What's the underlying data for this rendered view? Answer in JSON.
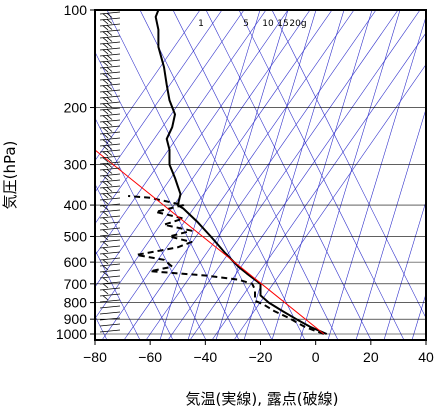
{
  "chart_data": {
    "type": "line",
    "title": "",
    "xlabel": "気温(実線), 露点(破線)",
    "ylabel": "気圧(hPa)",
    "y_scale": "log",
    "y_inverted": true,
    "xlim": [
      -80,
      40
    ],
    "ylim": [
      1050,
      100
    ],
    "x_ticks": [
      -80,
      -60,
      -40,
      -20,
      0,
      20,
      40
    ],
    "x_tick_labels": [
      "−80",
      "−60",
      "−40",
      "−20",
      "0",
      "20",
      "40"
    ],
    "y_ticks": [
      100,
      200,
      300,
      400,
      500,
      600,
      700,
      800,
      900,
      1000
    ],
    "y_tick_labels": [
      "100",
      "200",
      "300",
      "400",
      "500",
      "600",
      "700",
      "800",
      "900",
      "1000"
    ],
    "mixing_ratio_labels": [
      "1",
      "5",
      "10",
      "15",
      "20g"
    ],
    "grid": true,
    "colors": {
      "temperature": "#000000",
      "dewpoint": "#000000",
      "reference_line": "#ff0000",
      "background_lines": "#3333cc",
      "grid": "#000000"
    },
    "series": [
      {
        "style": "solid",
        "points": [
          [
            4,
            1000
          ],
          [
            -2,
            950
          ],
          [
            -7,
            900
          ],
          [
            -12,
            850
          ],
          [
            -17,
            800
          ],
          [
            -20,
            760
          ],
          [
            -20,
            730
          ],
          [
            -20,
            700
          ],
          [
            -22,
            680
          ],
          [
            -25,
            650
          ],
          [
            -28,
            620
          ],
          [
            -33,
            560
          ],
          [
            -38,
            500
          ],
          [
            -43,
            450
          ],
          [
            -48,
            410
          ],
          [
            -50,
            400
          ],
          [
            -49,
            370
          ],
          [
            -50,
            350
          ],
          [
            -51,
            330
          ],
          [
            -53,
            300
          ],
          [
            -53,
            270
          ],
          [
            -54,
            250
          ],
          [
            -52,
            230
          ],
          [
            -51,
            210
          ],
          [
            -53,
            190
          ],
          [
            -54,
            170
          ],
          [
            -55,
            150
          ],
          [
            -57,
            130
          ],
          [
            -57,
            115
          ],
          [
            -58,
            105
          ],
          [
            -57,
            100
          ]
        ]
      },
      {
        "style": "dashed",
        "points": [
          [
            3,
            1000
          ],
          [
            -4,
            950
          ],
          [
            -10,
            890
          ],
          [
            -15,
            850
          ],
          [
            -19,
            810
          ],
          [
            -22,
            790
          ],
          [
            -22,
            760
          ],
          [
            -22,
            730
          ],
          [
            -23,
            700
          ],
          [
            -28,
            680
          ],
          [
            -40,
            660
          ],
          [
            -60,
            640
          ],
          [
            -52,
            620
          ],
          [
            -55,
            590
          ],
          [
            -65,
            570
          ],
          [
            -55,
            550
          ],
          [
            -50,
            540
          ],
          [
            -45,
            520
          ],
          [
            -53,
            500
          ],
          [
            -45,
            480
          ],
          [
            -55,
            460
          ],
          [
            -48,
            440
          ],
          [
            -58,
            420
          ],
          [
            -48,
            400
          ],
          [
            -60,
            380
          ],
          [
            -68,
            375
          ]
        ]
      },
      {
        "style": "solid",
        "points": [
          [
            3,
            1000
          ],
          [
            -85,
            250
          ]
        ]
      }
    ]
  }
}
